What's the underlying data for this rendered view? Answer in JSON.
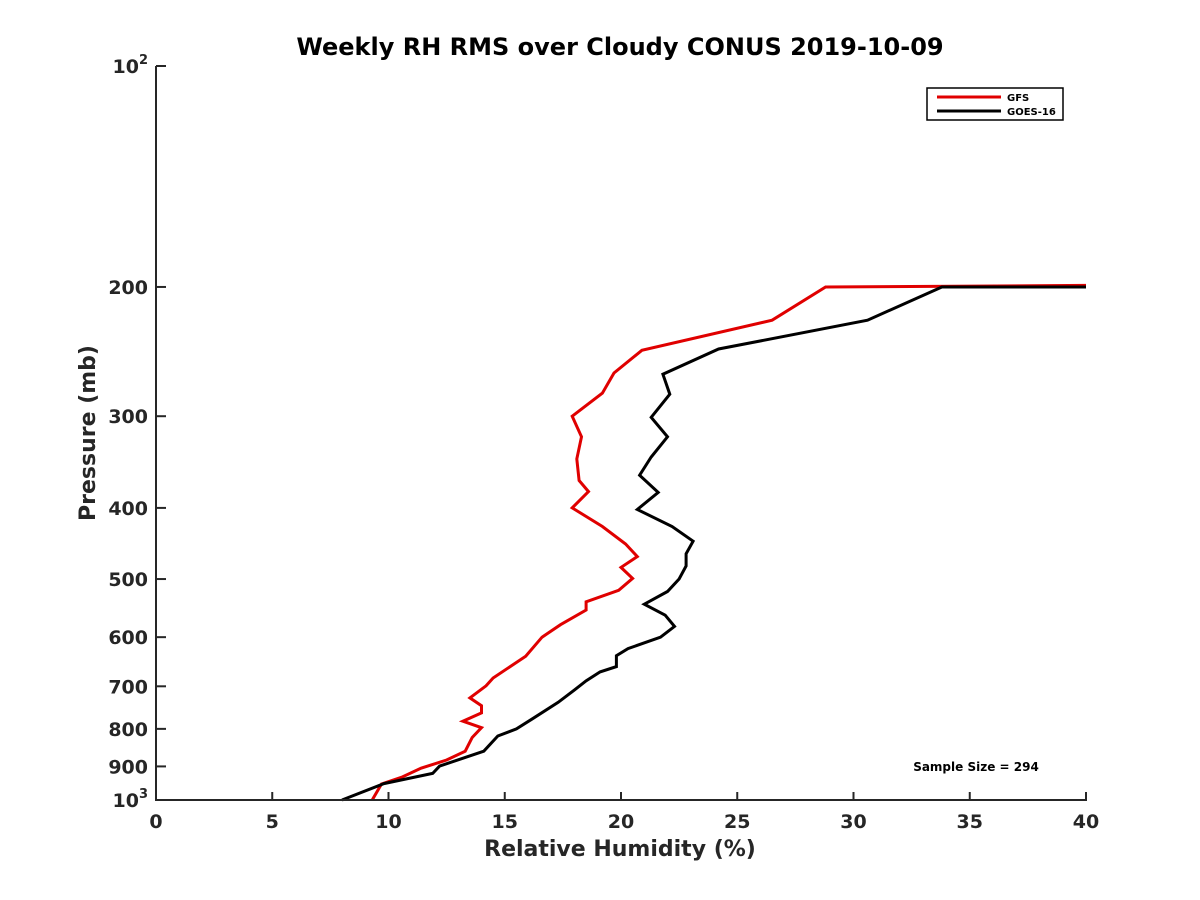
{
  "chart_data": {
    "type": "line",
    "title": "Weekly RH RMS over Cloudy CONUS 2019-10-09",
    "xlabel": "Relative Humidity (%)",
    "ylabel": "Pressure (mb)",
    "xlim": [
      0,
      40
    ],
    "ylim": [
      100,
      1000
    ],
    "y_scale": "log",
    "y_reversed": true,
    "grid": false,
    "legend_position": "top-right",
    "x_ticks": [
      "0",
      "5",
      "10",
      "15",
      "20",
      "25",
      "30",
      "35",
      "40"
    ],
    "y_ticks": [
      {
        "value": 100,
        "base": "10",
        "exp": "2"
      },
      {
        "value": 200,
        "label": "200"
      },
      {
        "value": 300,
        "label": "300"
      },
      {
        "value": 400,
        "label": "400"
      },
      {
        "value": 500,
        "label": "500"
      },
      {
        "value": 600,
        "label": "600"
      },
      {
        "value": 700,
        "label": "700"
      },
      {
        "value": 800,
        "label": "800"
      },
      {
        "value": 900,
        "label": "900"
      },
      {
        "value": 1000,
        "base": "10",
        "exp": "3"
      }
    ],
    "series": [
      {
        "name": "GFS",
        "color": "#e00000",
        "points": [
          [
            40.0,
            199
          ],
          [
            28.8,
            200
          ],
          [
            26.5,
            222
          ],
          [
            20.9,
            244
          ],
          [
            19.7,
            262
          ],
          [
            19.2,
            279
          ],
          [
            17.9,
            300
          ],
          [
            18.3,
            320
          ],
          [
            18.1,
            343
          ],
          [
            18.2,
            367
          ],
          [
            18.6,
            380
          ],
          [
            17.9,
            400
          ],
          [
            19.2,
            424
          ],
          [
            20.2,
            448
          ],
          [
            20.7,
            466
          ],
          [
            20.0,
            482
          ],
          [
            20.5,
            499
          ],
          [
            19.9,
            518
          ],
          [
            18.5,
            537
          ],
          [
            18.5,
            551
          ],
          [
            17.4,
            577
          ],
          [
            16.6,
            600
          ],
          [
            15.9,
            637
          ],
          [
            14.5,
            682
          ],
          [
            14.2,
            699
          ],
          [
            13.5,
            726
          ],
          [
            14.0,
            744
          ],
          [
            14.0,
            761
          ],
          [
            13.2,
            781
          ],
          [
            14.0,
            797
          ],
          [
            13.6,
            822
          ],
          [
            13.3,
            858
          ],
          [
            12.5,
            882
          ],
          [
            11.4,
            905
          ],
          [
            10.6,
            930
          ],
          [
            9.7,
            951
          ],
          [
            9.3,
            1000
          ]
        ]
      },
      {
        "name": "GOES-16",
        "color": "#000000",
        "points": [
          [
            40.0,
            200
          ],
          [
            33.8,
            200
          ],
          [
            30.6,
            222
          ],
          [
            24.2,
            243
          ],
          [
            21.8,
            263
          ],
          [
            22.1,
            280
          ],
          [
            21.3,
            301
          ],
          [
            22.0,
            320
          ],
          [
            21.3,
            341
          ],
          [
            20.8,
            361
          ],
          [
            21.6,
            381
          ],
          [
            20.7,
            402
          ],
          [
            22.2,
            424
          ],
          [
            23.1,
            444
          ],
          [
            22.8,
            462
          ],
          [
            22.8,
            480
          ],
          [
            22.5,
            500
          ],
          [
            22.0,
            520
          ],
          [
            21.0,
            541
          ],
          [
            21.9,
            560
          ],
          [
            22.3,
            580
          ],
          [
            21.7,
            600
          ],
          [
            20.3,
            622
          ],
          [
            19.8,
            636
          ],
          [
            19.8,
            658
          ],
          [
            19.1,
            669
          ],
          [
            18.5,
            688
          ],
          [
            18.0,
            708
          ],
          [
            17.3,
            736
          ],
          [
            16.2,
            775
          ],
          [
            15.5,
            800
          ],
          [
            14.7,
            818
          ],
          [
            14.1,
            858
          ],
          [
            12.2,
            899
          ],
          [
            11.9,
            920
          ],
          [
            9.8,
            950
          ],
          [
            8.0,
            1000
          ]
        ]
      }
    ],
    "legend": [
      "GFS",
      "GOES-16"
    ],
    "annotation": "Sample Size = 294"
  }
}
